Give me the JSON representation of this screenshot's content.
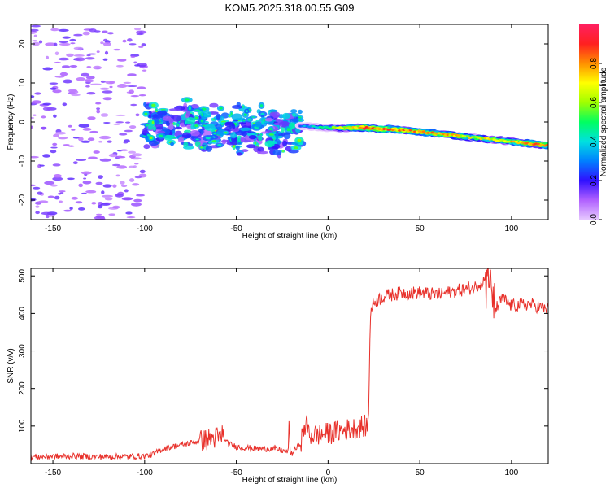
{
  "title": "KOM5.2025.318.00.55.G09",
  "chart_data": [
    {
      "type": "heatmap",
      "name": "spectrogram",
      "xlabel": "Height of straight line (km)",
      "ylabel": "Frequency (Hz)",
      "xlim": [
        -162,
        120
      ],
      "ylim": [
        -25,
        25
      ],
      "xticks": [
        -150,
        -100,
        -50,
        0,
        50,
        100
      ],
      "yticks": [
        -20,
        -10,
        0,
        10,
        20
      ],
      "colorbar": {
        "label": "Normalized spectral amplitude",
        "range": [
          0,
          1
        ],
        "ticks": [
          0.0,
          0.2,
          0.4,
          0.6,
          0.8
        ],
        "colors": [
          "#e6c8ff",
          "#b060ff",
          "#3010ff",
          "#0080ff",
          "#00e0e0",
          "#00ff60",
          "#a0ff00",
          "#ffff00",
          "#ff9000",
          "#ff2020",
          "#ff2060"
        ]
      },
      "signal_track": {
        "x": [
          -15,
          0,
          20,
          40,
          60,
          80,
          100,
          120
        ],
        "freq": [
          -1.0,
          -1.5,
          -1.5,
          -2.0,
          -3.0,
          -4.0,
          -5.0,
          -6.0
        ],
        "amplitude": [
          0.3,
          0.5,
          0.85,
          0.8,
          0.75,
          0.65,
          0.7,
          0.85
        ]
      },
      "noise_regions": [
        {
          "x_range": [
            -162,
            -100
          ],
          "freq_range": [
            -25,
            25
          ],
          "amplitude": 0.05
        },
        {
          "x_range": [
            -100,
            -15
          ],
          "freq_range": [
            -8,
            6
          ],
          "amplitude": 0.3
        }
      ]
    },
    {
      "type": "line",
      "name": "snr",
      "xlabel": "Height of straight line (km)",
      "ylabel": "SNR (v/v)",
      "xlim": [
        -162,
        120
      ],
      "ylim": [
        0,
        520
      ],
      "xticks": [
        -150,
        -100,
        -50,
        0,
        50,
        100
      ],
      "yticks": [
        100,
        200,
        300,
        400,
        500
      ],
      "color": "#e8302a",
      "series": [
        {
          "name": "SNR",
          "x": [
            -162,
            -140,
            -120,
            -100,
            -95,
            -90,
            -80,
            -70,
            -60,
            -55,
            -50,
            -40,
            -30,
            -25,
            -20,
            -15,
            -12,
            -10,
            0,
            10,
            20,
            22,
            23,
            25,
            30,
            40,
            50,
            60,
            70,
            80,
            85,
            88,
            90,
            95,
            100,
            110,
            120
          ],
          "y": [
            18,
            20,
            18,
            20,
            25,
            40,
            50,
            60,
            70,
            55,
            45,
            40,
            40,
            35,
            25,
            55,
            110,
            75,
            80,
            90,
            100,
            100,
            400,
            430,
            445,
            455,
            455,
            450,
            460,
            470,
            490,
            520,
            400,
            440,
            420,
            425,
            410
          ]
        }
      ]
    }
  ]
}
